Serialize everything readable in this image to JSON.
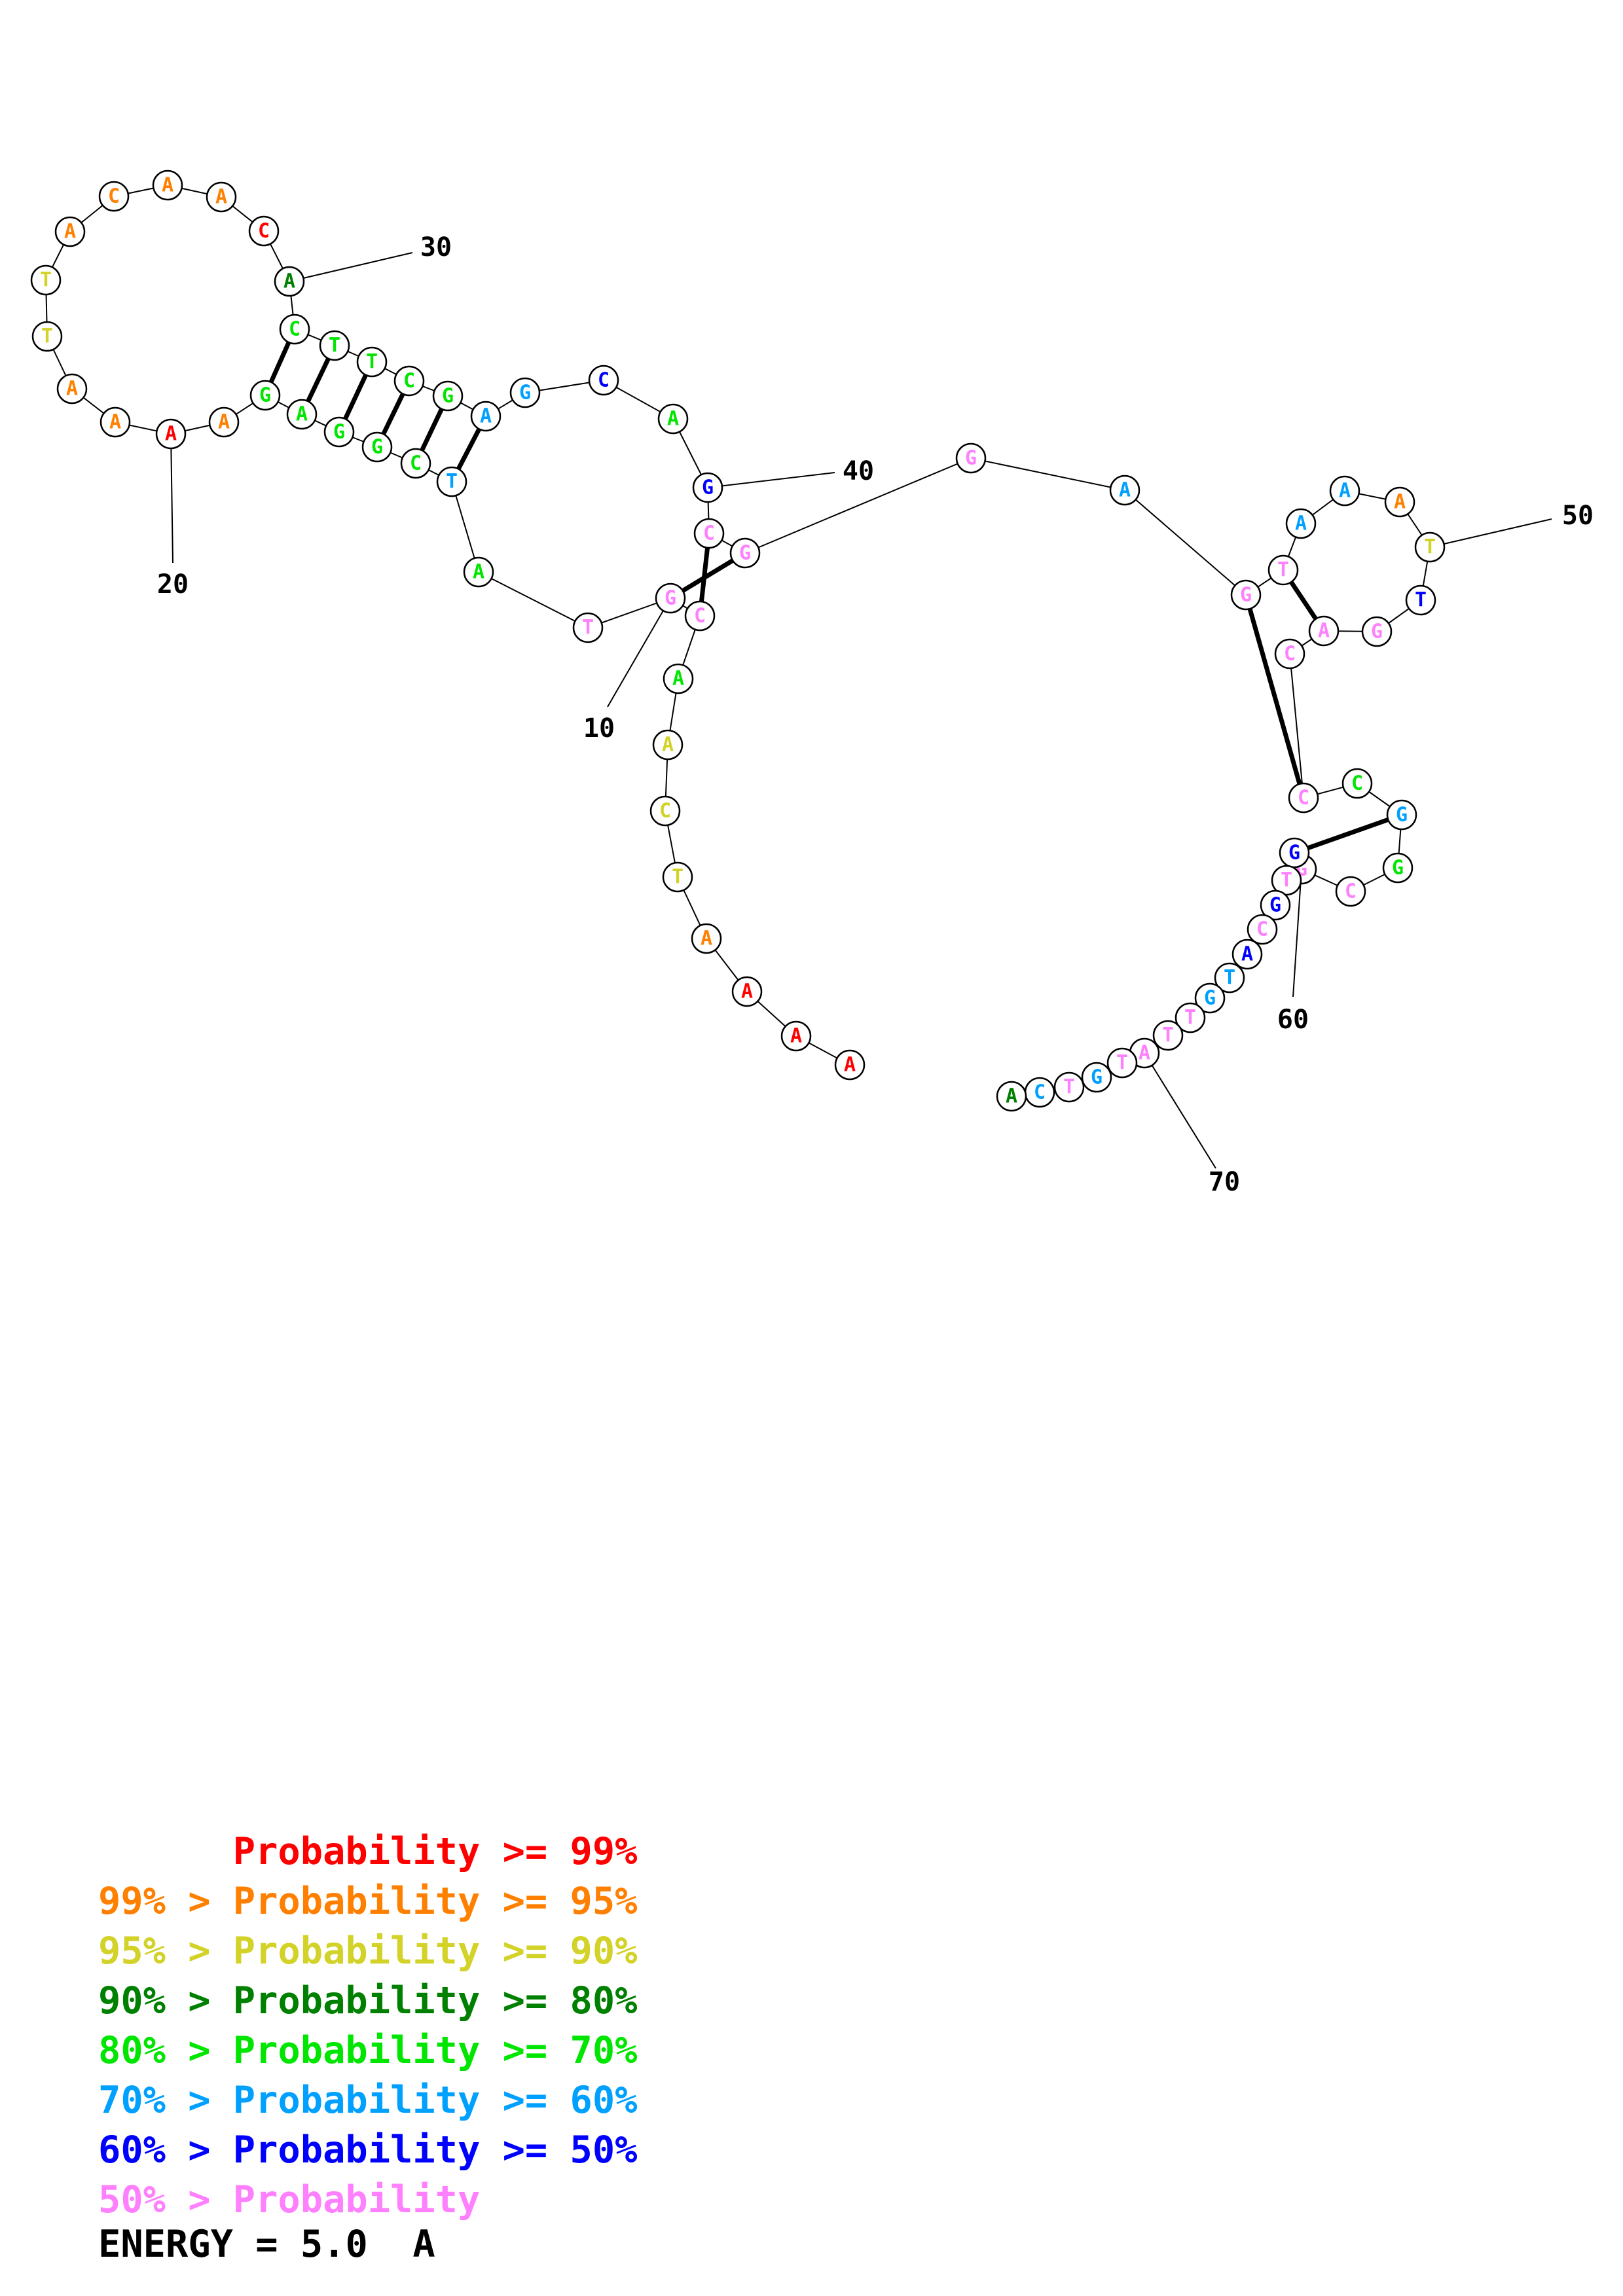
{
  "colors": {
    "p99": "#ff0000",
    "p95": "#ff8000",
    "p90": "#d2d228",
    "p80": "#008000",
    "p70": "#00e600",
    "p60": "#00a0ff",
    "p50": "#0000ff",
    "plow": "#ff80ff"
  },
  "nucleotides": [
    {
      "n": 1,
      "b": "A",
      "c": "p99"
    },
    {
      "n": 2,
      "b": "A",
      "c": "p99"
    },
    {
      "n": 3,
      "b": "A",
      "c": "p99"
    },
    {
      "n": 4,
      "b": "A",
      "c": "p95"
    },
    {
      "n": 5,
      "b": "T",
      "c": "p90"
    },
    {
      "n": 6,
      "b": "C",
      "c": "p90"
    },
    {
      "n": 7,
      "b": "A",
      "c": "p90"
    },
    {
      "n": 8,
      "b": "A",
      "c": "p70"
    },
    {
      "n": 9,
      "b": "C",
      "c": "plow"
    },
    {
      "n": 10,
      "b": "G",
      "c": "plow"
    },
    {
      "n": 11,
      "b": "T",
      "c": "plow"
    },
    {
      "n": 12,
      "b": "A",
      "c": "p70"
    },
    {
      "n": 13,
      "b": "T",
      "c": "p60"
    },
    {
      "n": 14,
      "b": "C",
      "c": "p70"
    },
    {
      "n": 15,
      "b": "G",
      "c": "p70"
    },
    {
      "n": 16,
      "b": "G",
      "c": "p70"
    },
    {
      "n": 17,
      "b": "A",
      "c": "p70"
    },
    {
      "n": 18,
      "b": "G",
      "c": "p70"
    },
    {
      "n": 19,
      "b": "A",
      "c": "p95"
    },
    {
      "n": 20,
      "b": "A",
      "c": "p99"
    },
    {
      "n": 21,
      "b": "A",
      "c": "p95"
    },
    {
      "n": 22,
      "b": "A",
      "c": "p95"
    },
    {
      "n": 23,
      "b": "T",
      "c": "p90"
    },
    {
      "n": 24,
      "b": "T",
      "c": "p90"
    },
    {
      "n": 25,
      "b": "A",
      "c": "p95"
    },
    {
      "n": 26,
      "b": "C",
      "c": "p95"
    },
    {
      "n": 27,
      "b": "A",
      "c": "p95"
    },
    {
      "n": 28,
      "b": "A",
      "c": "p95"
    },
    {
      "n": 29,
      "b": "C",
      "c": "p99"
    },
    {
      "n": 30,
      "b": "A",
      "c": "p80"
    },
    {
      "n": 31,
      "b": "C",
      "c": "p70"
    },
    {
      "n": 32,
      "b": "T",
      "c": "p70"
    },
    {
      "n": 33,
      "b": "T",
      "c": "p70"
    },
    {
      "n": 34,
      "b": "C",
      "c": "p70"
    },
    {
      "n": 35,
      "b": "G",
      "c": "p70"
    },
    {
      "n": 36,
      "b": "A",
      "c": "p60"
    },
    {
      "n": 37,
      "b": "G",
      "c": "p60"
    },
    {
      "n": 38,
      "b": "C",
      "c": "p50"
    },
    {
      "n": 39,
      "b": "A",
      "c": "p70"
    },
    {
      "n": 40,
      "b": "G",
      "c": "p50"
    },
    {
      "n": 41,
      "b": "C",
      "c": "plow"
    },
    {
      "n": 42,
      "b": "G",
      "c": "plow"
    },
    {
      "n": 43,
      "b": "G",
      "c": "plow"
    },
    {
      "n": 44,
      "b": "A",
      "c": "p60"
    },
    {
      "n": 45,
      "b": "G",
      "c": "plow"
    },
    {
      "n": 46,
      "b": "T",
      "c": "plow"
    },
    {
      "n": 47,
      "b": "A",
      "c": "p60"
    },
    {
      "n": 48,
      "b": "A",
      "c": "p60"
    },
    {
      "n": 49,
      "b": "A",
      "c": "p95"
    },
    {
      "n": 50,
      "b": "T",
      "c": "p90"
    },
    {
      "n": 51,
      "b": "T",
      "c": "p50"
    },
    {
      "n": 52,
      "b": "G",
      "c": "plow"
    },
    {
      "n": 53,
      "b": "A",
      "c": "plow"
    },
    {
      "n": 54,
      "b": "C",
      "c": "plow"
    },
    {
      "n": 55,
      "b": "C",
      "c": "plow"
    },
    {
      "n": 56,
      "b": "C",
      "c": "p70"
    },
    {
      "n": 57,
      "b": "G",
      "c": "p60"
    },
    {
      "n": 58,
      "b": "G",
      "c": "p70"
    },
    {
      "n": 59,
      "b": "C",
      "c": "plow"
    },
    {
      "n": 60,
      "b": "G",
      "c": "plow"
    },
    {
      "n": 61,
      "b": "G",
      "c": "p50"
    },
    {
      "n": 62,
      "b": "T",
      "c": "plow"
    },
    {
      "n": 63,
      "b": "G",
      "c": "p50"
    },
    {
      "n": 64,
      "b": "C",
      "c": "plow"
    },
    {
      "n": 65,
      "b": "A",
      "c": "p50"
    },
    {
      "n": 66,
      "b": "T",
      "c": "p60"
    },
    {
      "n": 67,
      "b": "G",
      "c": "p60"
    },
    {
      "n": 68,
      "b": "T",
      "c": "plow"
    },
    {
      "n": 69,
      "b": "T",
      "c": "plow"
    },
    {
      "n": 70,
      "b": "A",
      "c": "plow"
    },
    {
      "n": 71,
      "b": "T",
      "c": "plow"
    },
    {
      "n": 72,
      "b": "G",
      "c": "p60"
    },
    {
      "n": 73,
      "b": "T",
      "c": "plow"
    },
    {
      "n": 74,
      "b": "C",
      "c": "p60"
    },
    {
      "n": 75,
      "b": "A",
      "c": "p80"
    }
  ],
  "pairs": [
    [
      10,
      42
    ],
    [
      9,
      41
    ],
    [
      13,
      36
    ],
    [
      14,
      35
    ],
    [
      15,
      34
    ],
    [
      16,
      33
    ],
    [
      17,
      32
    ],
    [
      18,
      31
    ],
    [
      45,
      55
    ],
    [
      46,
      53
    ],
    [
      57,
      61
    ]
  ],
  "index_labels": [
    "10",
    "20",
    "30",
    "40",
    "50",
    "60",
    "70"
  ],
  "legend": [
    {
      "prefix": "",
      "text": "Probability >= 99%",
      "c": "p99"
    },
    {
      "prefix": "99% > ",
      "text": "Probability >= 95%",
      "c": "p95"
    },
    {
      "prefix": "95% > ",
      "text": "Probability >= 90%",
      "c": "p90"
    },
    {
      "prefix": "90% > ",
      "text": "Probability >= 80%",
      "c": "p80"
    },
    {
      "prefix": "80% > ",
      "text": "Probability >= 70%",
      "c": "p70"
    },
    {
      "prefix": "70% > ",
      "text": "Probability >= 60%",
      "c": "p60"
    },
    {
      "prefix": "60% > ",
      "text": "Probability >= 50%",
      "c": "p50"
    },
    {
      "prefix": "50% > ",
      "text": "Probability",
      "c": "plow"
    }
  ],
  "energy_label": "ENERGY = 5.0  A"
}
